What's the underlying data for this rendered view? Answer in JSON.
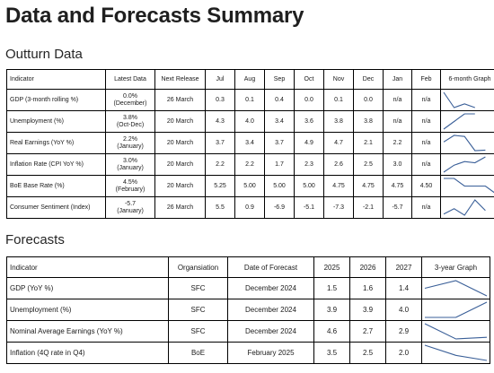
{
  "page_title": "Data and Forecasts Summary",
  "outturn": {
    "title": "Outturn Data",
    "headers": [
      "Indicator",
      "Latest Data",
      "Next Release",
      "Jul",
      "Aug",
      "Sep",
      "Oct",
      "Nov",
      "Dec",
      "Jan",
      "Feb",
      "6-month Graph"
    ],
    "rows": [
      {
        "indicator": "GDP (3-month rolling %)",
        "latest_value": "0.0%",
        "latest_period": "(December)",
        "next_release": "26 March",
        "cells": [
          "0.3",
          "0.1",
          "0.4",
          "0.0",
          "0.1",
          "0.0",
          "n/a",
          "n/a"
        ],
        "trend": [
          0.4,
          0.0,
          0.1,
          0.0
        ]
      },
      {
        "indicator": "Unemployment (%)",
        "latest_value": "3.8%",
        "latest_period": "(Oct-Dec)",
        "next_release": "20 March",
        "cells": [
          "4.3",
          "4.0",
          "3.4",
          "3.6",
          "3.8",
          "3.8",
          "n/a",
          "n/a"
        ],
        "trend": [
          3.4,
          3.6,
          3.8,
          3.8
        ]
      },
      {
        "indicator": "Real Earnings (YoY %)",
        "latest_value": "2.2%",
        "latest_period": "(January)",
        "next_release": "20 March",
        "cells": [
          "3.7",
          "3.4",
          "3.7",
          "4.9",
          "4.7",
          "2.1",
          "2.2",
          "n/a"
        ],
        "trend": [
          3.7,
          4.9,
          4.7,
          2.1,
          2.2
        ]
      },
      {
        "indicator": "Inflation Rate (CPI YoY %)",
        "latest_value": "3.0%",
        "latest_period": "(January)",
        "next_release": "20 March",
        "cells": [
          "2.2",
          "2.2",
          "1.7",
          "2.3",
          "2.6",
          "2.5",
          "3.0",
          "n/a"
        ],
        "trend": [
          1.7,
          2.3,
          2.6,
          2.5,
          3.0
        ]
      },
      {
        "indicator": "BoE Base Rate (%)",
        "latest_value": "4.5%",
        "latest_period": "(February)",
        "next_release": "20 March",
        "cells": [
          "5.25",
          "5.00",
          "5.00",
          "5.00",
          "4.75",
          "4.75",
          "4.75",
          "4.50"
        ],
        "trend": [
          5.0,
          5.0,
          4.75,
          4.75,
          4.75,
          4.5
        ]
      },
      {
        "indicator": "Consumer Sentiment (Index)",
        "latest_value": "-5.7",
        "latest_period": "(January)",
        "next_release": "26 March",
        "cells": [
          "5.5",
          "0.9",
          "-6.9",
          "-5.1",
          "-7.3",
          "-2.1",
          "-5.7",
          "n/a"
        ],
        "trend": [
          -6.9,
          -5.1,
          -7.3,
          -2.1,
          -5.7
        ]
      }
    ]
  },
  "forecasts": {
    "title": "Forecasts",
    "headers": [
      "Indicator",
      "Organsiation",
      "Date of Forecast",
      "2025",
      "2026",
      "2027",
      "3-year Graph"
    ],
    "rows": [
      {
        "indicator": "GDP (YoY %)",
        "organisation": "SFC",
        "date": "December 2024",
        "values": [
          "1.5",
          "1.6",
          "1.4"
        ],
        "trend": [
          1.5,
          1.6,
          1.4
        ]
      },
      {
        "indicator": "Unemployment (%)",
        "organisation": "SFC",
        "date": "December 2024",
        "values": [
          "3.9",
          "3.9",
          "4.0"
        ],
        "trend": [
          3.9,
          3.9,
          4.0
        ]
      },
      {
        "indicator": "Nominal Average Earnings (YoY %)",
        "organisation": "SFC",
        "date": "December 2024",
        "values": [
          "4.6",
          "2.7",
          "2.9"
        ],
        "trend": [
          4.6,
          2.7,
          2.9
        ]
      },
      {
        "indicator": "Inflation (4Q rate in Q4)",
        "organisation": "BoE",
        "date": "February 2025",
        "values": [
          "3.5",
          "2.5",
          "2.0"
        ],
        "trend": [
          3.5,
          2.5,
          2.0
        ]
      }
    ]
  }
}
